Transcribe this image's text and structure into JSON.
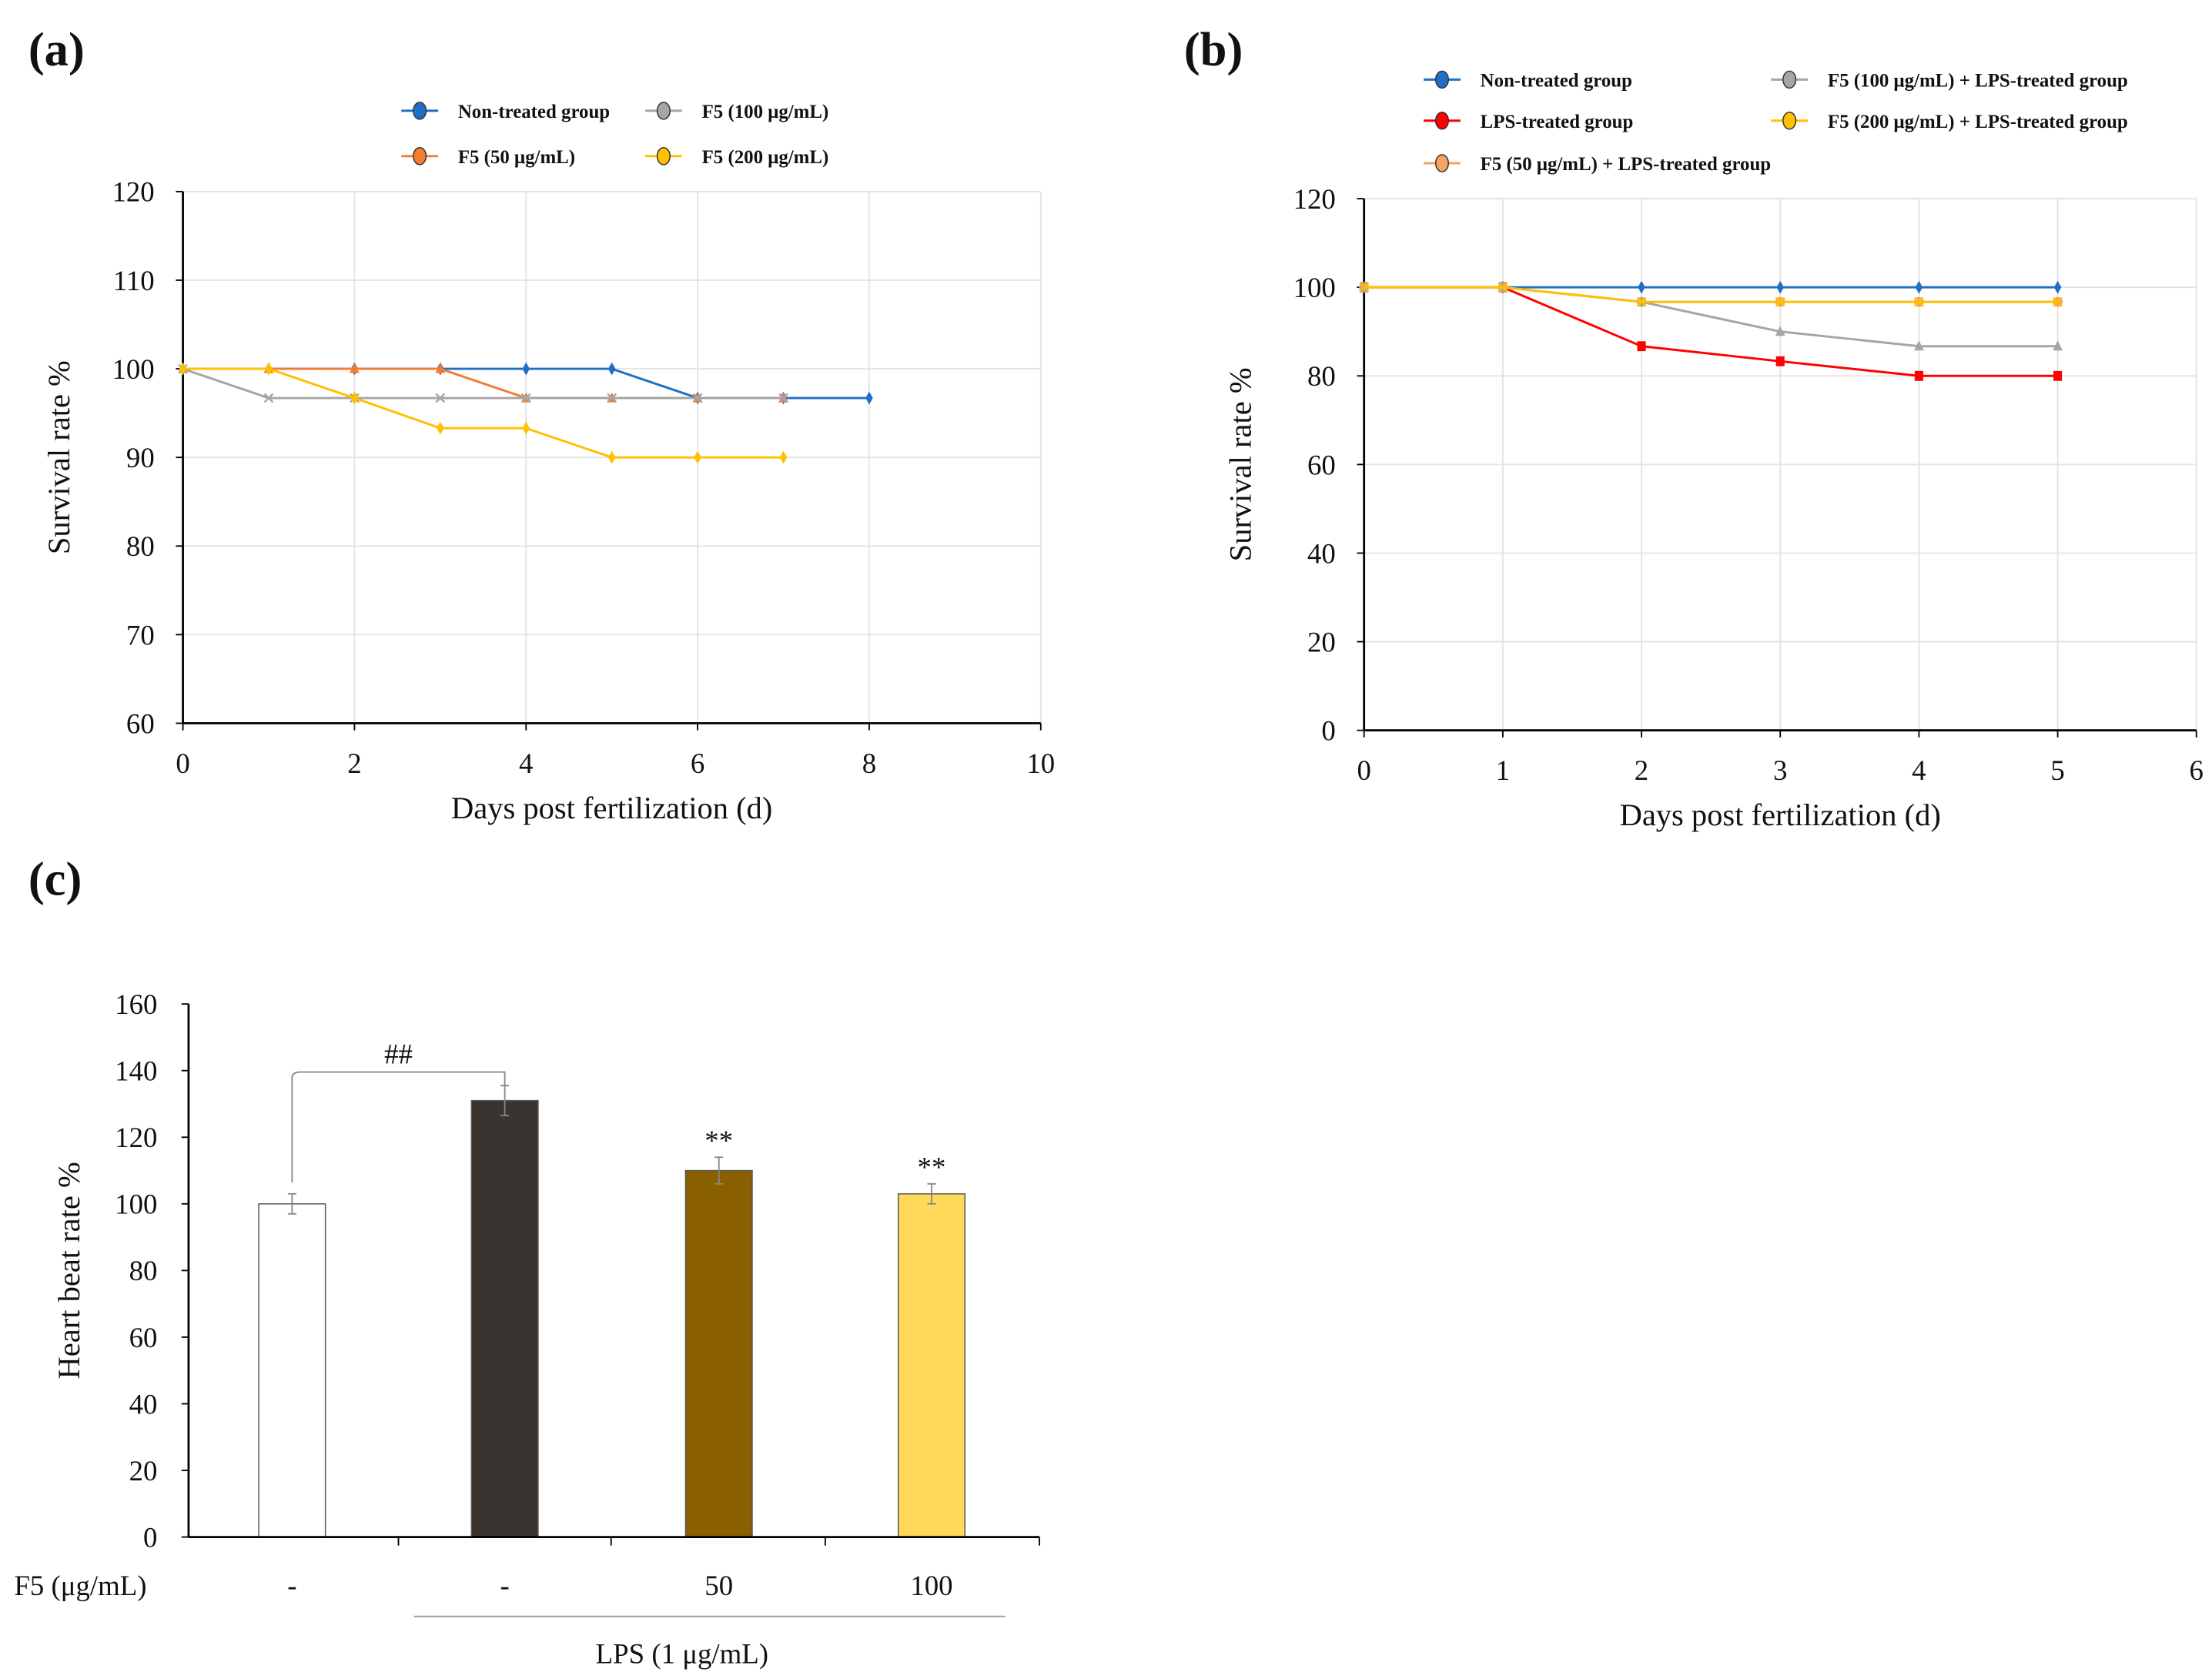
{
  "chart_data": [
    {
      "panel": "(a)",
      "type": "line",
      "xlabel": "Days post fertilization (d)",
      "ylabel": "Survival rate %",
      "xlim": [
        0,
        10
      ],
      "ylim": [
        60,
        120
      ],
      "xticks": [
        0,
        2,
        4,
        6,
        8,
        10
      ],
      "yticks": [
        60,
        70,
        80,
        90,
        100,
        110,
        120
      ],
      "grid": true,
      "legend_position": "top",
      "series": [
        {
          "name": "Non-treated group",
          "color": "#1f6fc5",
          "marker": "diamond",
          "x": [
            0,
            1,
            2,
            3,
            4,
            5,
            6,
            7,
            8
          ],
          "values": [
            100,
            100,
            100,
            100,
            100,
            100,
            96.7,
            96.7,
            96.7
          ]
        },
        {
          "name": "F5 (50 μg/mL)",
          "color": "#f47c30",
          "marker": "triangle",
          "x": [
            0,
            1,
            2,
            3,
            4,
            5,
            6,
            7
          ],
          "values": [
            100,
            100,
            100,
            100,
            96.7,
            96.7,
            96.7,
            96.7
          ]
        },
        {
          "name": "F5 (100 μg/mL)",
          "color": "#a5a5a5",
          "marker": "x",
          "x": [
            0,
            1,
            2,
            3,
            4,
            5,
            6,
            7
          ],
          "values": [
            100,
            96.7,
            96.7,
            96.7,
            96.7,
            96.7,
            96.7,
            96.7
          ]
        },
        {
          "name": "F5 (200 μg/mL)",
          "color": "#ffc000",
          "marker": "diamond",
          "x": [
            0,
            1,
            2,
            3,
            4,
            5,
            6,
            7
          ],
          "values": [
            100,
            100,
            96.7,
            93.3,
            93.3,
            90,
            90,
            90
          ]
        }
      ]
    },
    {
      "panel": "(b)",
      "type": "line",
      "xlabel": "Days post fertilization (d)",
      "ylabel": "Survival rate %",
      "xlim": [
        0,
        6
      ],
      "ylim": [
        0,
        120
      ],
      "xticks": [
        0,
        1,
        2,
        3,
        4,
        5,
        6
      ],
      "yticks": [
        0,
        20,
        40,
        60,
        80,
        100,
        120
      ],
      "grid": true,
      "legend_position": "top",
      "series": [
        {
          "name": "Non-treated group",
          "color": "#1f6fc5",
          "marker": "diamond",
          "x": [
            0,
            1,
            2,
            3,
            4,
            5
          ],
          "values": [
            100,
            100,
            100,
            100,
            100,
            100
          ]
        },
        {
          "name": "LPS-treated group",
          "color": "#ff0000",
          "marker": "square",
          "x": [
            0,
            1,
            2,
            3,
            4,
            5
          ],
          "values": [
            100,
            100,
            86.7,
            83.3,
            80,
            80
          ]
        },
        {
          "name": "F5 (50 μg/mL) + LPS-treated group",
          "color": "#f4a460",
          "marker": "circle",
          "x": [
            0,
            1,
            2,
            3,
            4,
            5
          ],
          "values": [
            100,
            100,
            96.7,
            96.7,
            96.7,
            96.7
          ]
        },
        {
          "name": "F5 (100 μg/mL) + LPS-treated group",
          "color": "#a5a5a5",
          "marker": "triangle",
          "x": [
            0,
            1,
            2,
            3,
            4,
            5
          ],
          "values": [
            100,
            100,
            96.7,
            90,
            86.7,
            86.7
          ]
        },
        {
          "name": "F5 (200 μg/mL) + LPS-treated group",
          "color": "#ffc000",
          "marker": "x",
          "x": [
            0,
            1,
            2,
            3,
            4,
            5
          ],
          "values": [
            100,
            100,
            96.7,
            96.7,
            96.7,
            96.7
          ]
        }
      ]
    },
    {
      "panel": "(c)",
      "type": "bar",
      "ylabel": "Heart beat rate %",
      "ylim": [
        0,
        160
      ],
      "yticks": [
        0,
        20,
        40,
        60,
        80,
        100,
        120,
        140,
        160
      ],
      "row_label": "F5 (μg/mL)",
      "categories": [
        "-",
        "-",
        "50",
        "100"
      ],
      "values": [
        100,
        131,
        110,
        103
      ],
      "errors": [
        3,
        4.5,
        4,
        3
      ],
      "colors": [
        "#ffffff",
        "#3a3431",
        "#8a5f00",
        "#ffd95a"
      ],
      "annotations": [
        "",
        "",
        "**",
        "**"
      ],
      "bracket_label": "##",
      "group_label": "LPS (1 μg/mL)"
    }
  ]
}
